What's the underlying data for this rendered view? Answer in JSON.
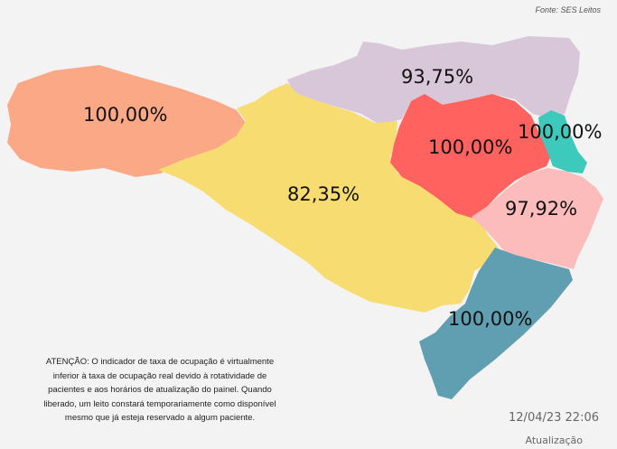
{
  "source": "Fonte: SES Leitos",
  "regions": [
    {
      "id": "oeste",
      "label": "100,00%",
      "value": 100.0,
      "color": "#fba886"
    },
    {
      "id": "planalto-norte",
      "label": "93,75%",
      "value": 93.75,
      "color": "#d8c7d9"
    },
    {
      "id": "meio-oeste-serra",
      "label": "82,35%",
      "value": 82.35,
      "color": "#f7dc71"
    },
    {
      "id": "vale-do-itajai",
      "label": "100,00%",
      "value": 100.0,
      "color": "#ff625f"
    },
    {
      "id": "nordeste",
      "label": "100,00%",
      "value": 100.0,
      "color": "#3ec9bd"
    },
    {
      "id": "grande-florianopolis",
      "label": "97,92%",
      "value": 97.92,
      "color": "#fdbcbc"
    },
    {
      "id": "sul",
      "label": "100,00%",
      "value": 100.0,
      "color": "#609fb1"
    }
  ],
  "notice": {
    "lines": [
      "ATENÇÃO: O indicador de taxa de ocupação é virtualmente",
      "inferior à taxa de ocupação real devido à rotatividade de",
      "pacientes e aos horários de atualização do painel.  Quando",
      "liberado, um leito constará temporariamente como disponível",
      "mesmo que já esteja reservado a algum paciente."
    ]
  },
  "timestamp": "12/04/23 22:06",
  "update_label": "Atualização"
}
